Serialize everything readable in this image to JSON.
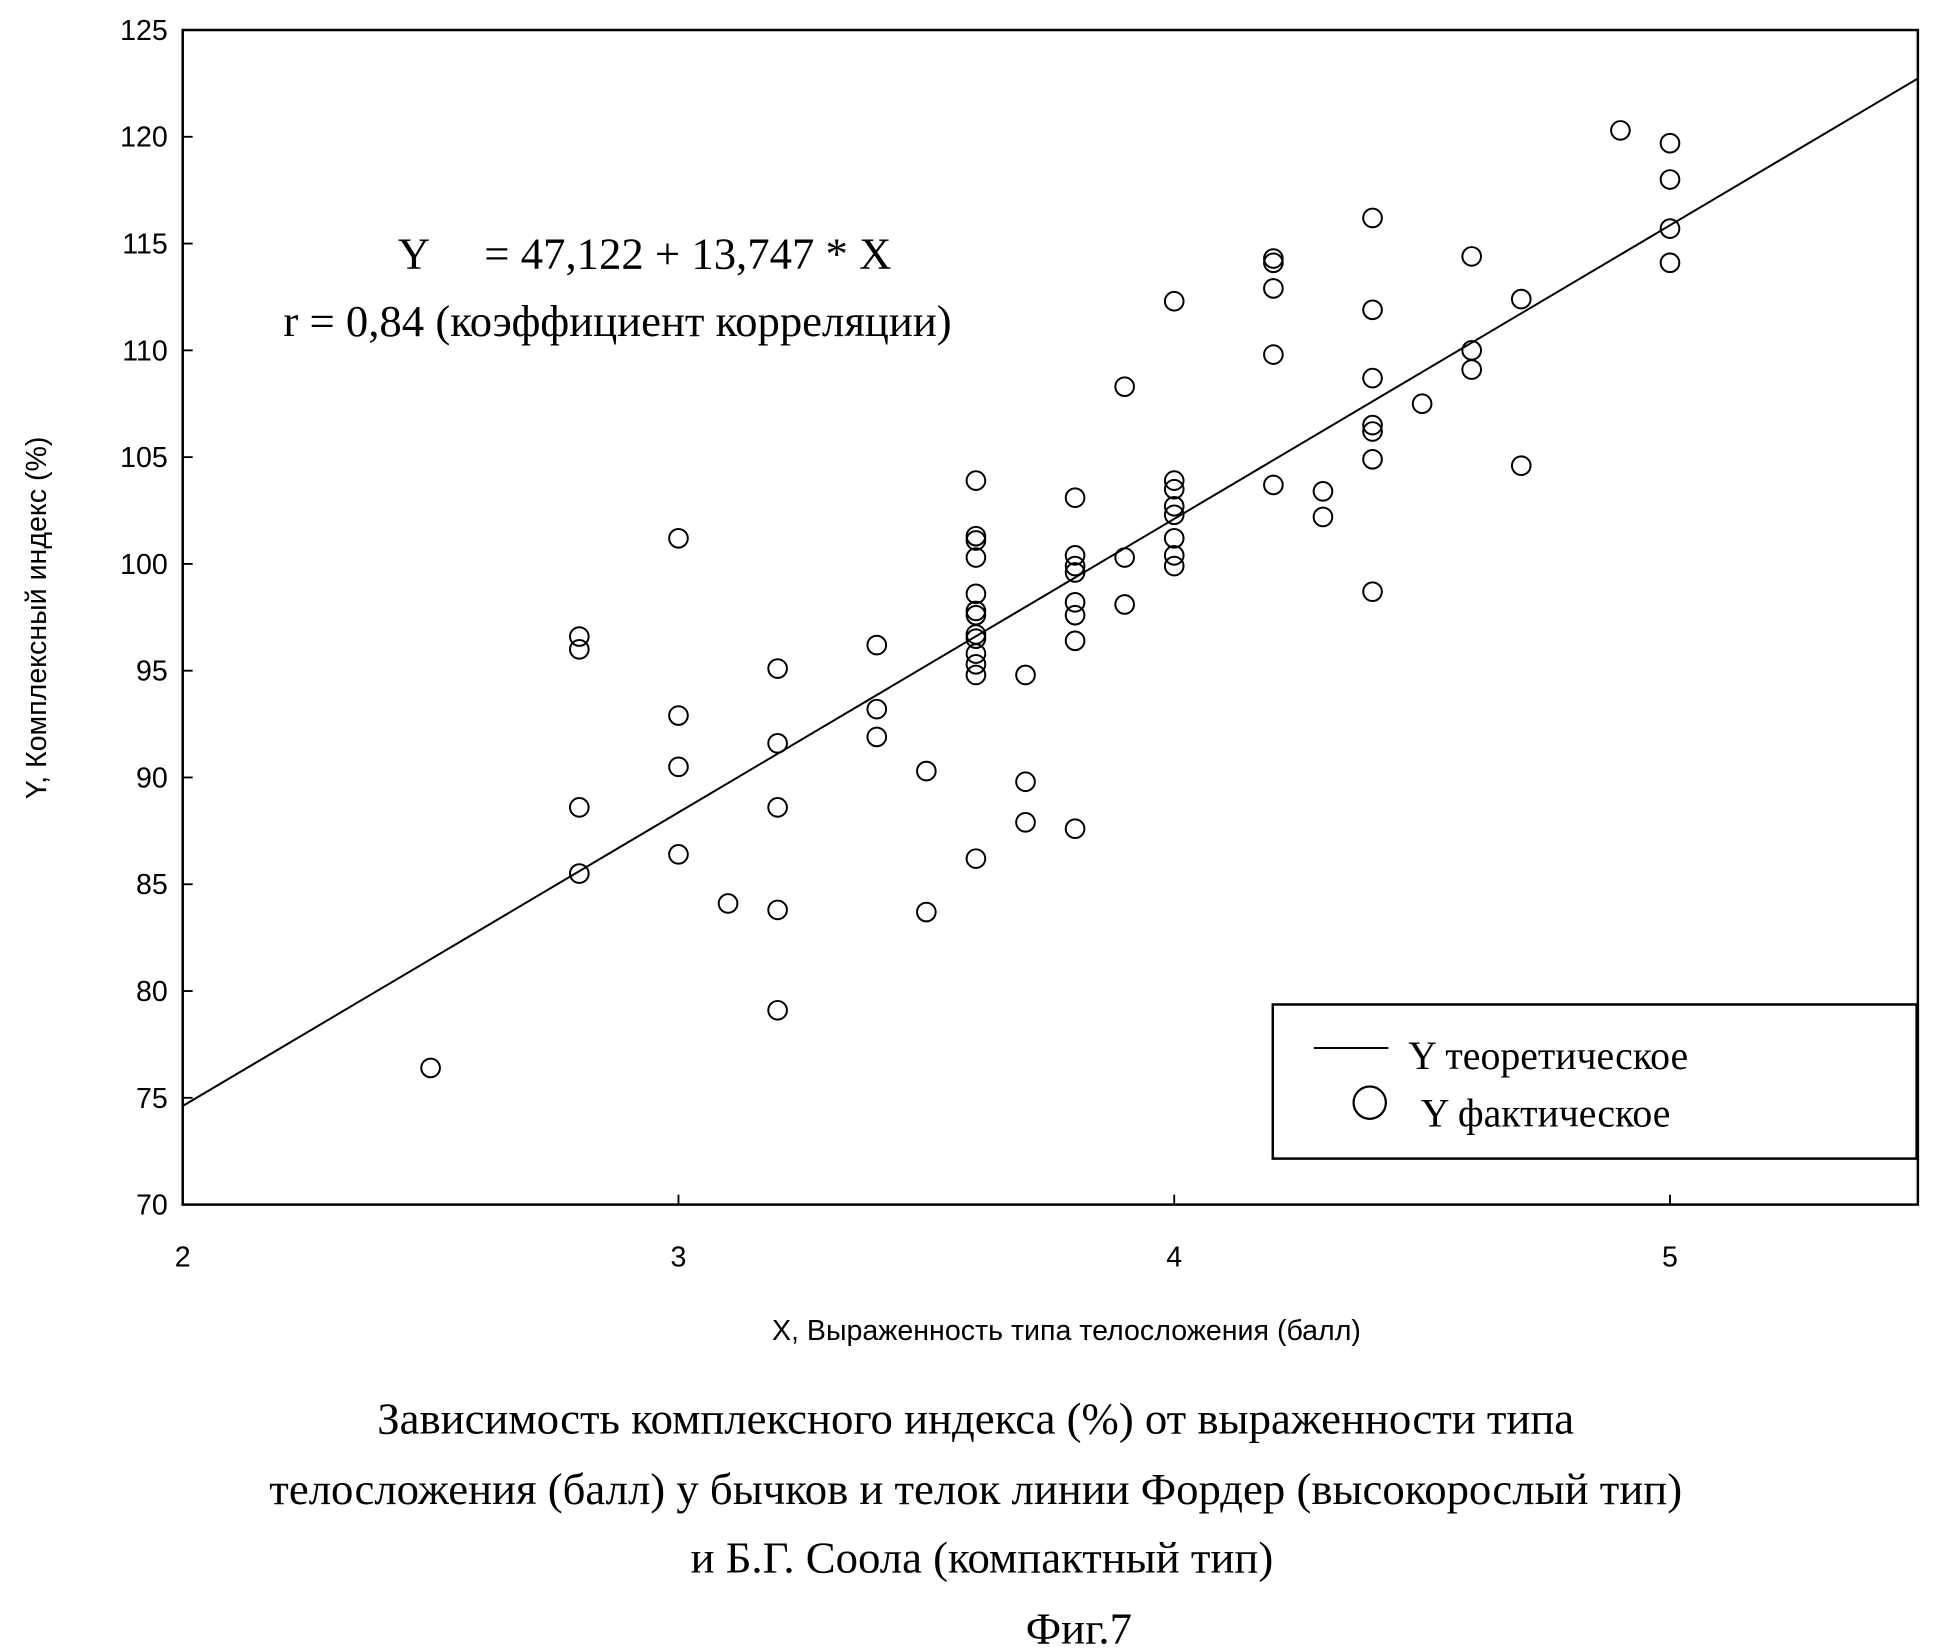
{
  "chart_data": {
    "type": "scatter",
    "xlabel": "X, Выраженность типа телосложения (балл)",
    "ylabel": "Y, Комплексный индекс (%)",
    "xlim": [
      2,
      5.5
    ],
    "ylim": [
      70,
      125
    ],
    "xticks": [
      2,
      3,
      4,
      5
    ],
    "yticks": [
      70,
      75,
      80,
      85,
      90,
      95,
      100,
      105,
      110,
      115,
      120,
      125
    ],
    "equation": "Y     = 47,122 + 13,747 * X",
    "correlation": "r = 0,84 (коэффициент корреляции)",
    "regression": {
      "intercept": 47.122,
      "slope": 13.747
    },
    "legend": {
      "position": "bottom-right",
      "line": "Y теоретическое",
      "points": "Y фактическое"
    },
    "points": [
      [
        2.5,
        76.4
      ],
      [
        2.8,
        96.6
      ],
      [
        2.8,
        96.0
      ],
      [
        2.8,
        88.6
      ],
      [
        2.8,
        85.5
      ],
      [
        3.0,
        101.2
      ],
      [
        3.0,
        92.9
      ],
      [
        3.0,
        90.5
      ],
      [
        3.0,
        86.4
      ],
      [
        3.1,
        84.1
      ],
      [
        3.2,
        95.1
      ],
      [
        3.2,
        91.6
      ],
      [
        3.2,
        88.6
      ],
      [
        3.2,
        83.8
      ],
      [
        3.2,
        79.1
      ],
      [
        3.4,
        96.2
      ],
      [
        3.4,
        93.2
      ],
      [
        3.4,
        91.9
      ],
      [
        3.5,
        90.3
      ],
      [
        3.5,
        83.7
      ],
      [
        3.6,
        103.9
      ],
      [
        3.6,
        101.3
      ],
      [
        3.6,
        101.1
      ],
      [
        3.6,
        100.3
      ],
      [
        3.6,
        98.6
      ],
      [
        3.6,
        97.8
      ],
      [
        3.6,
        97.6
      ],
      [
        3.6,
        96.7
      ],
      [
        3.6,
        96.5
      ],
      [
        3.6,
        95.8
      ],
      [
        3.6,
        95.3
      ],
      [
        3.6,
        94.8
      ],
      [
        3.6,
        86.2
      ],
      [
        3.7,
        94.8
      ],
      [
        3.7,
        89.8
      ],
      [
        3.7,
        87.9
      ],
      [
        3.8,
        103.1
      ],
      [
        3.8,
        100.4
      ],
      [
        3.8,
        99.9
      ],
      [
        3.8,
        99.6
      ],
      [
        3.8,
        98.2
      ],
      [
        3.8,
        97.6
      ],
      [
        3.8,
        96.4
      ],
      [
        3.8,
        87.6
      ],
      [
        3.9,
        108.3
      ],
      [
        3.9,
        100.3
      ],
      [
        3.9,
        98.1
      ],
      [
        4.0,
        112.3
      ],
      [
        4.0,
        103.9
      ],
      [
        4.0,
        103.5
      ],
      [
        4.0,
        102.7
      ],
      [
        4.0,
        102.3
      ],
      [
        4.0,
        101.2
      ],
      [
        4.0,
        100.4
      ],
      [
        4.0,
        99.9
      ],
      [
        4.2,
        114.3
      ],
      [
        4.2,
        114.1
      ],
      [
        4.2,
        112.9
      ],
      [
        4.2,
        109.8
      ],
      [
        4.2,
        103.7
      ],
      [
        4.3,
        103.4
      ],
      [
        4.3,
        102.2
      ],
      [
        4.4,
        116.2
      ],
      [
        4.4,
        111.9
      ],
      [
        4.4,
        108.7
      ],
      [
        4.4,
        106.5
      ],
      [
        4.4,
        106.2
      ],
      [
        4.4,
        104.9
      ],
      [
        4.4,
        98.7
      ],
      [
        4.5,
        107.5
      ],
      [
        4.6,
        114.4
      ],
      [
        4.6,
        110.0
      ],
      [
        4.6,
        109.1
      ],
      [
        4.7,
        112.4
      ],
      [
        4.7,
        104.6
      ],
      [
        4.9,
        120.3
      ],
      [
        5.0,
        119.7
      ],
      [
        5.0,
        118.0
      ],
      [
        5.0,
        115.7
      ],
      [
        5.0,
        114.1
      ]
    ]
  },
  "caption": {
    "line1": "Зависимость комплексного индекса (%) от выраженности типа",
    "line2": "телосложения (балл) у бычков и телок линии Фордер (высокорослый тип)",
    "line3": "и Б.Г. Соола (компактный тип)",
    "figure": "Фиг.7"
  }
}
